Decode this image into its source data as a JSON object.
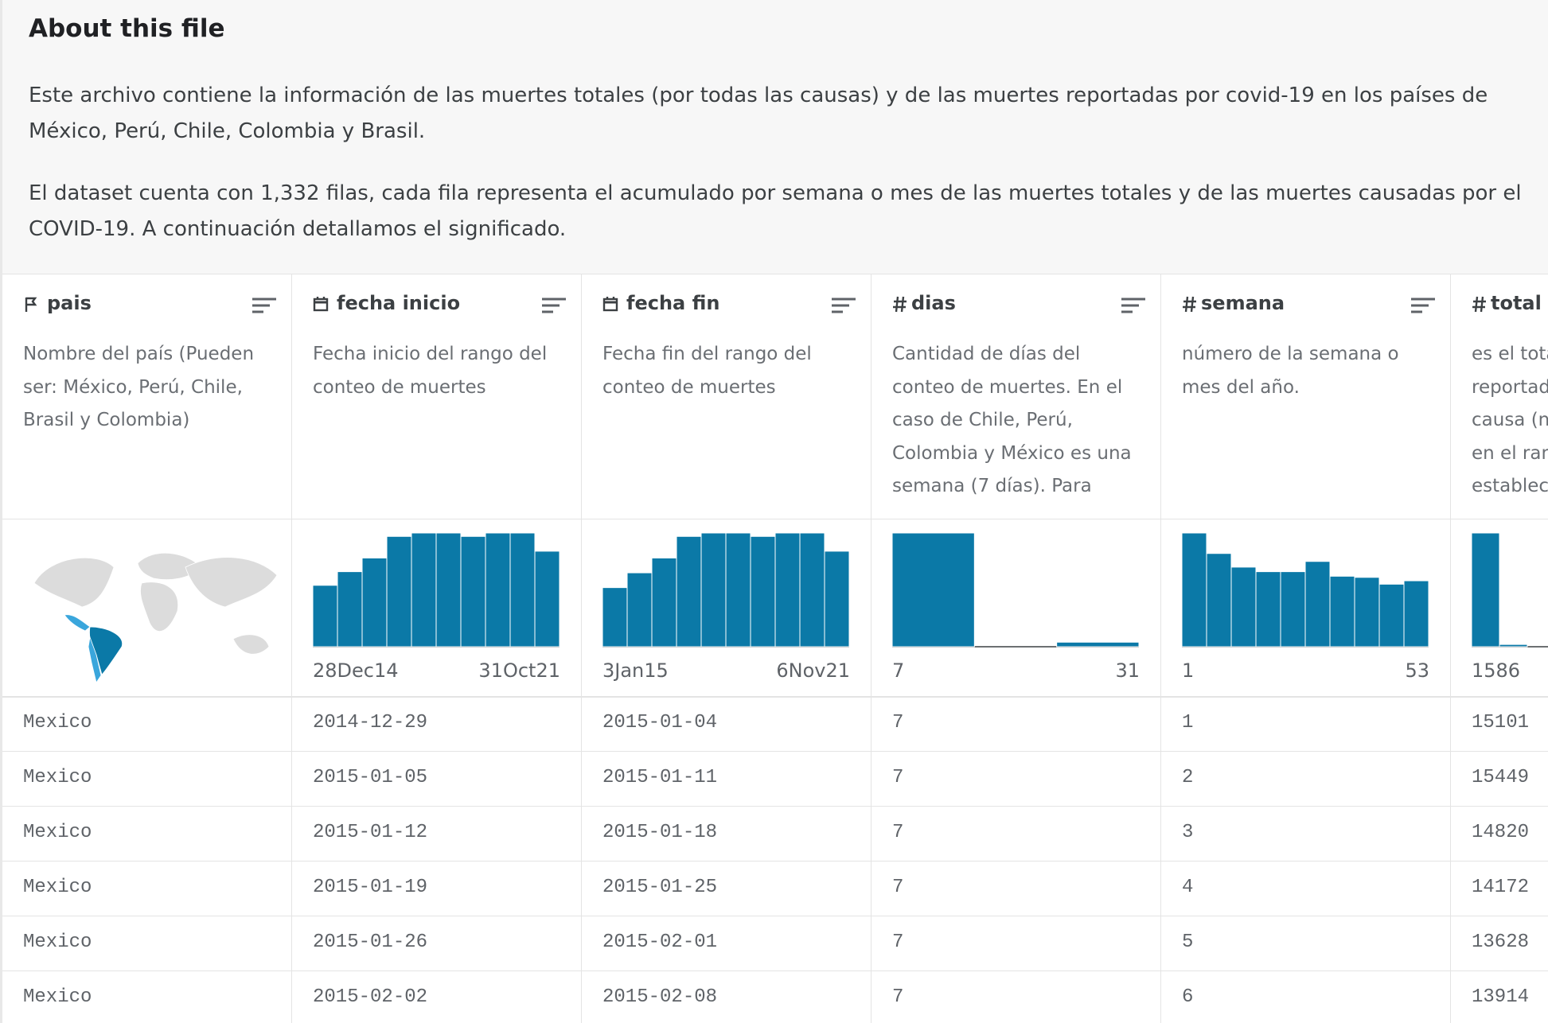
{
  "header": {
    "title": "About this file",
    "paragraphs": [
      "Este archivo contiene la información de las muertes totales (por todas las causas) y de las muertes reportadas por covid-19 en los países de México, Perú, Chile, Colombia y Brasil.",
      "El dataset cuenta con 1,332 filas, cada fila representa el acumulado por semana o mes de las muertes totales y de las muertes causadas por el COVID-19. A continuación detallamos el significado."
    ]
  },
  "columns": [
    {
      "name": "pais",
      "type": "string",
      "description": "Nombre del país (Pueden ser: México, Perú, Chile, Brasil y Colombia)"
    },
    {
      "name": "fecha inicio",
      "type": "date",
      "description": "Fecha inicio del rango del conteo de muertes",
      "histogram": {
        "values": [
          54,
          66,
          78,
          97,
          100,
          100,
          97,
          100,
          100,
          84
        ],
        "range_labels": [
          "28Dec14",
          "31Oct21"
        ]
      }
    },
    {
      "name": "fecha fin",
      "type": "date",
      "description": "Fecha fin del rango del conteo de muertes",
      "histogram": {
        "values": [
          52,
          65,
          78,
          97,
          100,
          100,
          97,
          100,
          100,
          84
        ],
        "range_labels": [
          "3Jan15",
          "6Nov21"
        ]
      }
    },
    {
      "name": "dias",
      "type": "numeric",
      "description": "Cantidad de días del conteo de muertes. En el caso de Chile, Perú, Colombia y México es una semana (7 días). Para",
      "histogram": {
        "values": [
          100,
          0,
          4
        ],
        "range_labels": [
          "7",
          "31"
        ]
      }
    },
    {
      "name": "semana",
      "type": "numeric",
      "description": "número de la semana o mes del año.",
      "histogram": {
        "values": [
          100,
          82,
          70,
          66,
          66,
          75,
          62,
          61,
          55,
          58
        ],
        "range_labels": [
          "1",
          "53"
        ]
      }
    },
    {
      "name": "total r",
      "type": "numeric",
      "description": "es el tota\nreportad\ncausa (n\nen el ran\nestablec",
      "histogram": {
        "values": [
          100,
          2
        ],
        "range_labels": [
          "1586"
        ]
      }
    }
  ],
  "rows": [
    [
      "Mexico",
      "2014-12-29",
      "2015-01-04",
      "7",
      "1",
      "15101"
    ],
    [
      "Mexico",
      "2015-01-05",
      "2015-01-11",
      "7",
      "2",
      "15449"
    ],
    [
      "Mexico",
      "2015-01-12",
      "2015-01-18",
      "7",
      "3",
      "14820"
    ],
    [
      "Mexico",
      "2015-01-19",
      "2015-01-25",
      "7",
      "4",
      "14172"
    ],
    [
      "Mexico",
      "2015-01-26",
      "2015-02-01",
      "7",
      "5",
      "13628"
    ],
    [
      "Mexico",
      "2015-02-02",
      "2015-02-08",
      "7",
      "6",
      "13914"
    ]
  ]
}
